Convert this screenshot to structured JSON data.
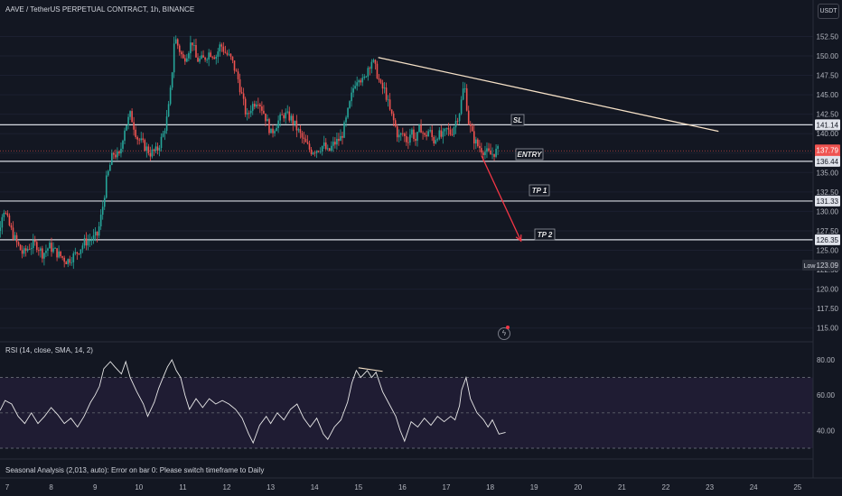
{
  "header": {
    "symbol_line": "AAVE / TetherUS PERPETUAL CONTRACT, 1h, BINANCE"
  },
  "currency_button": "USDT",
  "rsi": {
    "title": "RSI (14, close, SMA, 14, 2)",
    "levels": [
      80,
      60,
      40
    ],
    "ylim": [
      30,
      85
    ],
    "upper_band": 70,
    "lower_band": 30,
    "middle_band": 50
  },
  "seasonal": {
    "message": "Seasonal Analysis (2,013, auto): Error on bar 0: Please switch timeframe to Daily"
  },
  "annotations": {
    "sl": "SL",
    "entry": "ENTRY",
    "tp1": "TP 1",
    "tp2": "TP 2"
  },
  "price_labels": {
    "sl_level": "141.14",
    "current_price": "137.79",
    "countdown": "56:10",
    "entry_level": "136.44",
    "tp1_level": "131.33",
    "tp2_level": "126.35",
    "low_tag": "Low",
    "low_value": "123.09"
  },
  "colors": {
    "background": "#131722",
    "up": "#26a69a",
    "down": "#ef5350",
    "trendline": "#f7e2c8",
    "arrow": "#f23645",
    "level_line": "#d7dbe3",
    "rsi_line": "#e8e8e8",
    "rsi_band": "#1f1c33"
  },
  "chart_data": {
    "type": "candlestick",
    "title": "AAVE / TetherUS PERPETUAL CONTRACT, 1h, BINANCE",
    "price_axis": {
      "ylim": [
        114,
        157
      ],
      "ticks": [
        115.0,
        117.5,
        120.0,
        122.5,
        125.0,
        127.5,
        130.0,
        132.5,
        135.0,
        137.5,
        140.0,
        142.5,
        145.0,
        147.5,
        150.0,
        152.5
      ]
    },
    "x_axis": {
      "ticks": [
        "7",
        "8",
        "9",
        "10",
        "11",
        "12",
        "13",
        "14",
        "15",
        "16",
        "17",
        "18",
        "19",
        "20",
        "21",
        "22",
        "23",
        "24",
        "25"
      ]
    },
    "levels": {
      "sl": 141.14,
      "entry": 136.44,
      "tp1": 131.33,
      "tp2": 126.35
    },
    "current_price": 137.79,
    "low": 123.09,
    "price_path": [
      [
        6.55,
        127.0
      ],
      [
        6.7,
        126.0
      ],
      [
        6.85,
        127.5
      ],
      [
        6.95,
        130.5
      ],
      [
        7.1,
        128.0
      ],
      [
        7.25,
        126.0
      ],
      [
        7.4,
        124.5
      ],
      [
        7.55,
        125.5
      ],
      [
        7.7,
        125.8
      ],
      [
        7.85,
        124.5
      ],
      [
        8.0,
        125.5
      ],
      [
        8.2,
        124.5
      ],
      [
        8.4,
        123.6
      ],
      [
        8.6,
        124.5
      ],
      [
        8.8,
        126.0
      ],
      [
        9.0,
        126.5
      ],
      [
        9.1,
        127.0
      ],
      [
        9.2,
        130.0
      ],
      [
        9.3,
        134.0
      ],
      [
        9.45,
        137.5
      ],
      [
        9.6,
        137.0
      ],
      [
        9.7,
        140.5
      ],
      [
        9.85,
        142.5
      ],
      [
        10.0,
        139.5
      ],
      [
        10.15,
        138.5
      ],
      [
        10.3,
        137.5
      ],
      [
        10.45,
        137.8
      ],
      [
        10.6,
        140.0
      ],
      [
        10.7,
        142.5
      ],
      [
        10.78,
        146.5
      ],
      [
        10.85,
        152.5
      ],
      [
        10.95,
        151.0
      ],
      [
        11.05,
        149.5
      ],
      [
        11.15,
        150.5
      ],
      [
        11.25,
        152.0
      ],
      [
        11.35,
        149.5
      ],
      [
        11.5,
        149.5
      ],
      [
        11.65,
        150.5
      ],
      [
        11.8,
        150.0
      ],
      [
        11.9,
        151.5
      ],
      [
        12.0,
        150.5
      ],
      [
        12.15,
        149.5
      ],
      [
        12.3,
        147.0
      ],
      [
        12.4,
        144.5
      ],
      [
        12.5,
        142.0
      ],
      [
        12.6,
        143.5
      ],
      [
        12.75,
        144.5
      ],
      [
        12.9,
        142.5
      ],
      [
        13.05,
        140.0
      ],
      [
        13.2,
        141.5
      ],
      [
        13.35,
        142.5
      ],
      [
        13.5,
        142.0
      ],
      [
        13.65,
        140.5
      ],
      [
        13.8,
        139.0
      ],
      [
        13.95,
        137.8
      ],
      [
        14.1,
        138.0
      ],
      [
        14.25,
        138.5
      ],
      [
        14.35,
        137.5
      ],
      [
        14.45,
        138.5
      ],
      [
        14.55,
        139.0
      ],
      [
        14.65,
        139.5
      ],
      [
        14.75,
        141.5
      ],
      [
        14.85,
        144.0
      ],
      [
        14.95,
        146.5
      ],
      [
        15.05,
        147.5
      ],
      [
        15.15,
        146.5
      ],
      [
        15.25,
        148.5
      ],
      [
        15.35,
        149.5
      ],
      [
        15.45,
        148.0
      ],
      [
        15.55,
        146.0
      ],
      [
        15.65,
        145.5
      ],
      [
        15.75,
        143.0
      ],
      [
        15.85,
        141.5
      ],
      [
        15.95,
        139.5
      ],
      [
        16.05,
        140.0
      ],
      [
        16.15,
        139.0
      ],
      [
        16.25,
        140.5
      ],
      [
        16.35,
        139.0
      ],
      [
        16.45,
        141.0
      ],
      [
        16.55,
        139.5
      ],
      [
        16.65,
        140.5
      ],
      [
        16.75,
        139.0
      ],
      [
        16.85,
        140.0
      ],
      [
        16.95,
        139.5
      ],
      [
        17.05,
        140.5
      ],
      [
        17.15,
        140.0
      ],
      [
        17.25,
        141.5
      ],
      [
        17.35,
        143.0
      ],
      [
        17.45,
        146.5
      ],
      [
        17.55,
        141.5
      ],
      [
        17.65,
        139.5
      ],
      [
        17.75,
        138.5
      ],
      [
        17.85,
        138.0
      ],
      [
        17.95,
        137.6
      ],
      [
        18.05,
        137.3
      ],
      [
        18.2,
        137.79
      ]
    ],
    "trendline": [
      [
        15.45,
        149.8
      ],
      [
        23.2,
        140.3
      ]
    ],
    "trade_arrow": [
      [
        17.8,
        137.2
      ],
      [
        18.7,
        126.2
      ]
    ],
    "rsi_series": [
      [
        6.5,
        45
      ],
      [
        6.7,
        47
      ],
      [
        6.85,
        52
      ],
      [
        6.95,
        57
      ],
      [
        7.1,
        55
      ],
      [
        7.25,
        48
      ],
      [
        7.4,
        44
      ],
      [
        7.55,
        50
      ],
      [
        7.7,
        44
      ],
      [
        7.85,
        48
      ],
      [
        8.0,
        53
      ],
      [
        8.15,
        49
      ],
      [
        8.3,
        44
      ],
      [
        8.45,
        47
      ],
      [
        8.6,
        42
      ],
      [
        8.75,
        48
      ],
      [
        8.9,
        56
      ],
      [
        9.0,
        60
      ],
      [
        9.1,
        65
      ],
      [
        9.2,
        75
      ],
      [
        9.35,
        79
      ],
      [
        9.45,
        76
      ],
      [
        9.6,
        72
      ],
      [
        9.7,
        79
      ],
      [
        9.8,
        70
      ],
      [
        9.95,
        62
      ],
      [
        10.1,
        55
      ],
      [
        10.2,
        48
      ],
      [
        10.35,
        56
      ],
      [
        10.45,
        64
      ],
      [
        10.55,
        70
      ],
      [
        10.65,
        76
      ],
      [
        10.75,
        80
      ],
      [
        10.85,
        74
      ],
      [
        10.95,
        70
      ],
      [
        11.05,
        60
      ],
      [
        11.15,
        52
      ],
      [
        11.3,
        58
      ],
      [
        11.45,
        53
      ],
      [
        11.6,
        58
      ],
      [
        11.75,
        55
      ],
      [
        11.9,
        57
      ],
      [
        12.05,
        55
      ],
      [
        12.2,
        52
      ],
      [
        12.35,
        47
      ],
      [
        12.5,
        38
      ],
      [
        12.6,
        33
      ],
      [
        12.75,
        43
      ],
      [
        12.9,
        48
      ],
      [
        13.0,
        44
      ],
      [
        13.15,
        50
      ],
      [
        13.3,
        46
      ],
      [
        13.45,
        52
      ],
      [
        13.6,
        55
      ],
      [
        13.75,
        47
      ],
      [
        13.9,
        42
      ],
      [
        14.05,
        47
      ],
      [
        14.2,
        38
      ],
      [
        14.3,
        35
      ],
      [
        14.45,
        42
      ],
      [
        14.6,
        46
      ],
      [
        14.75,
        56
      ],
      [
        14.85,
        67
      ],
      [
        14.95,
        74
      ],
      [
        15.05,
        70
      ],
      [
        15.2,
        74
      ],
      [
        15.3,
        70
      ],
      [
        15.4,
        73
      ],
      [
        15.55,
        62
      ],
      [
        15.7,
        55
      ],
      [
        15.85,
        48
      ],
      [
        15.95,
        40
      ],
      [
        16.05,
        34
      ],
      [
        16.2,
        45
      ],
      [
        16.35,
        42
      ],
      [
        16.5,
        47
      ],
      [
        16.65,
        43
      ],
      [
        16.8,
        48
      ],
      [
        16.95,
        45
      ],
      [
        17.1,
        48
      ],
      [
        17.2,
        46
      ],
      [
        17.3,
        54
      ],
      [
        17.35,
        63
      ],
      [
        17.45,
        70
      ],
      [
        17.55,
        58
      ],
      [
        17.7,
        50
      ],
      [
        17.85,
        46
      ],
      [
        17.95,
        42
      ],
      [
        18.05,
        46
      ],
      [
        18.2,
        38
      ],
      [
        18.35,
        39
      ]
    ],
    "rsi_divergence_line": [
      [
        15.0,
        75.5
      ],
      [
        15.55,
        73.5
      ]
    ]
  }
}
